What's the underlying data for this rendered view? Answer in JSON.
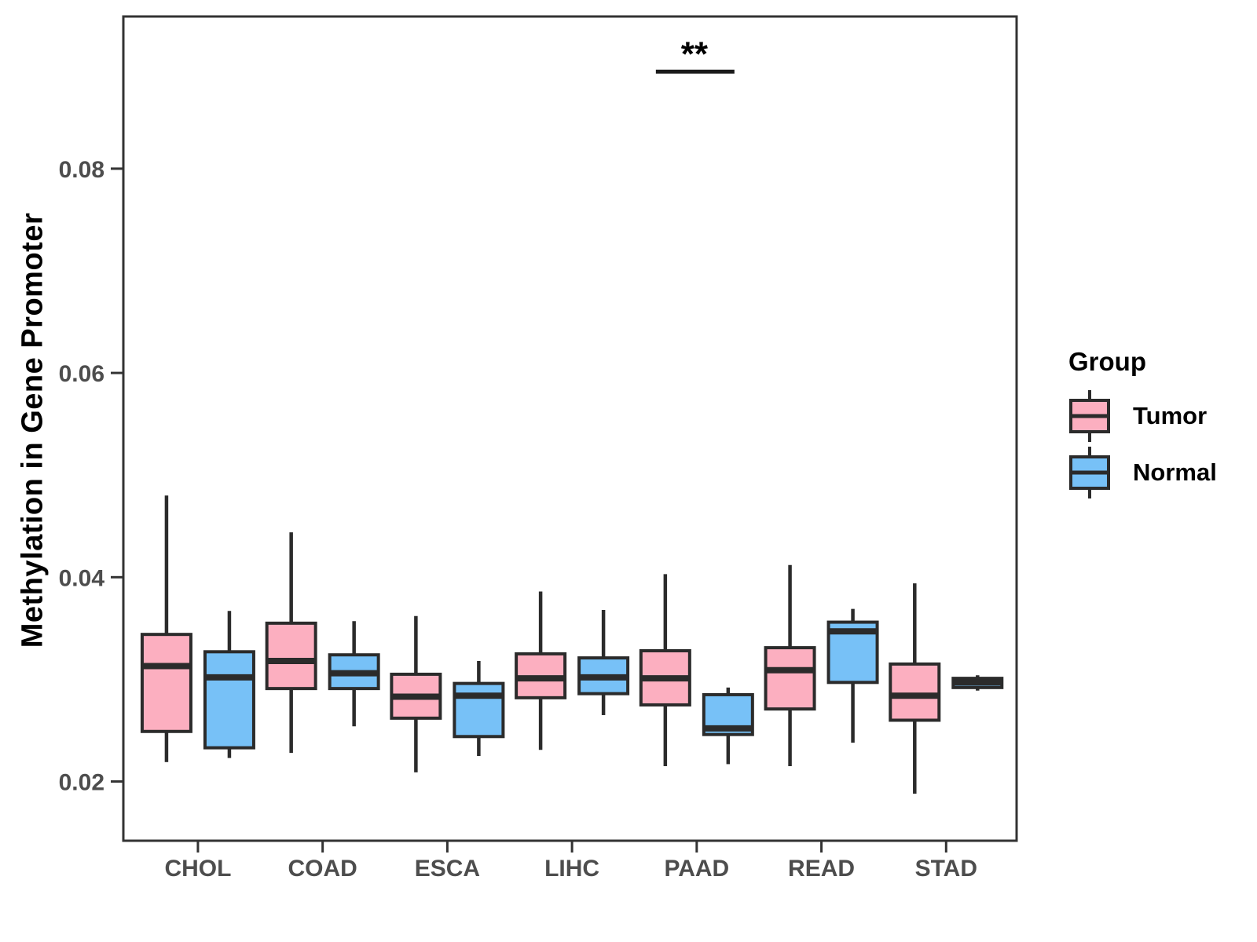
{
  "colors": {
    "tumor_fill": "#FCAFC0",
    "normal_fill": "#77C1F7",
    "box_stroke": "#2B2B2B",
    "panel_border": "#333333",
    "axis_text": "#4D4D4D",
    "title_text": "#000000",
    "background": "#FFFFFF"
  },
  "legend": {
    "title": "Group",
    "items": [
      {
        "label": "Tumor",
        "color": "#FCAFC0"
      },
      {
        "label": "Normal",
        "color": "#77C1F7"
      }
    ]
  },
  "chart_data": {
    "type": "boxplot",
    "title": "",
    "xlabel": "",
    "ylabel": "Methylation in Gene Promoter",
    "categories": [
      "CHOL",
      "COAD",
      "ESCA",
      "LIHC",
      "PAAD",
      "READ",
      "STAD"
    ],
    "groups": [
      "Tumor",
      "Normal"
    ],
    "ylim": [
      0.0142,
      0.0949
    ],
    "yticks": [
      0.08,
      0.06,
      0.04,
      0.02
    ],
    "ytick_labels": [
      "0.08",
      "0.06",
      "0.04",
      "0.02"
    ],
    "grid": false,
    "legend_position": "right",
    "series": [
      {
        "name": "Tumor",
        "color": "#FCAFC0",
        "boxes": [
          {
            "category": "CHOL",
            "min": 0.0219,
            "q1": 0.0249,
            "median": 0.0313,
            "q3": 0.0344,
            "max": 0.048
          },
          {
            "category": "COAD",
            "min": 0.0228,
            "q1": 0.0291,
            "median": 0.0318,
            "q3": 0.0355,
            "max": 0.0444
          },
          {
            "category": "ESCA",
            "min": 0.0209,
            "q1": 0.0262,
            "median": 0.0283,
            "q3": 0.0305,
            "max": 0.0362
          },
          {
            "category": "LIHC",
            "min": 0.0231,
            "q1": 0.0282,
            "median": 0.0301,
            "q3": 0.0325,
            "max": 0.0386
          },
          {
            "category": "PAAD",
            "min": 0.0215,
            "q1": 0.0275,
            "median": 0.0301,
            "q3": 0.0328,
            "max": 0.0403
          },
          {
            "category": "READ",
            "min": 0.0215,
            "q1": 0.0271,
            "median": 0.0309,
            "q3": 0.0331,
            "max": 0.0412
          },
          {
            "category": "STAD",
            "min": 0.0188,
            "q1": 0.026,
            "median": 0.0284,
            "q3": 0.0315,
            "max": 0.0394
          }
        ]
      },
      {
        "name": "Normal",
        "color": "#77C1F7",
        "boxes": [
          {
            "category": "CHOL",
            "min": 0.0223,
            "q1": 0.0233,
            "median": 0.0302,
            "q3": 0.0327,
            "max": 0.0367
          },
          {
            "category": "COAD",
            "min": 0.0254,
            "q1": 0.0291,
            "median": 0.0306,
            "q3": 0.0324,
            "max": 0.0357
          },
          {
            "category": "ESCA",
            "min": 0.0225,
            "q1": 0.0244,
            "median": 0.0284,
            "q3": 0.0296,
            "max": 0.0318
          },
          {
            "category": "LIHC",
            "min": 0.0265,
            "q1": 0.0286,
            "median": 0.0302,
            "q3": 0.0321,
            "max": 0.0368
          },
          {
            "category": "PAAD",
            "min": 0.0217,
            "q1": 0.0246,
            "median": 0.0252,
            "q3": 0.0285,
            "max": 0.0292
          },
          {
            "category": "READ",
            "min": 0.0238,
            "q1": 0.0297,
            "median": 0.0347,
            "q3": 0.0356,
            "max": 0.0369
          },
          {
            "category": "STAD",
            "min": 0.0289,
            "q1": 0.0292,
            "median": 0.0297,
            "q3": 0.0301,
            "max": 0.0304
          }
        ]
      }
    ],
    "annotation": {
      "category": "PAAD",
      "label": "**",
      "y": 0.0895
    }
  }
}
